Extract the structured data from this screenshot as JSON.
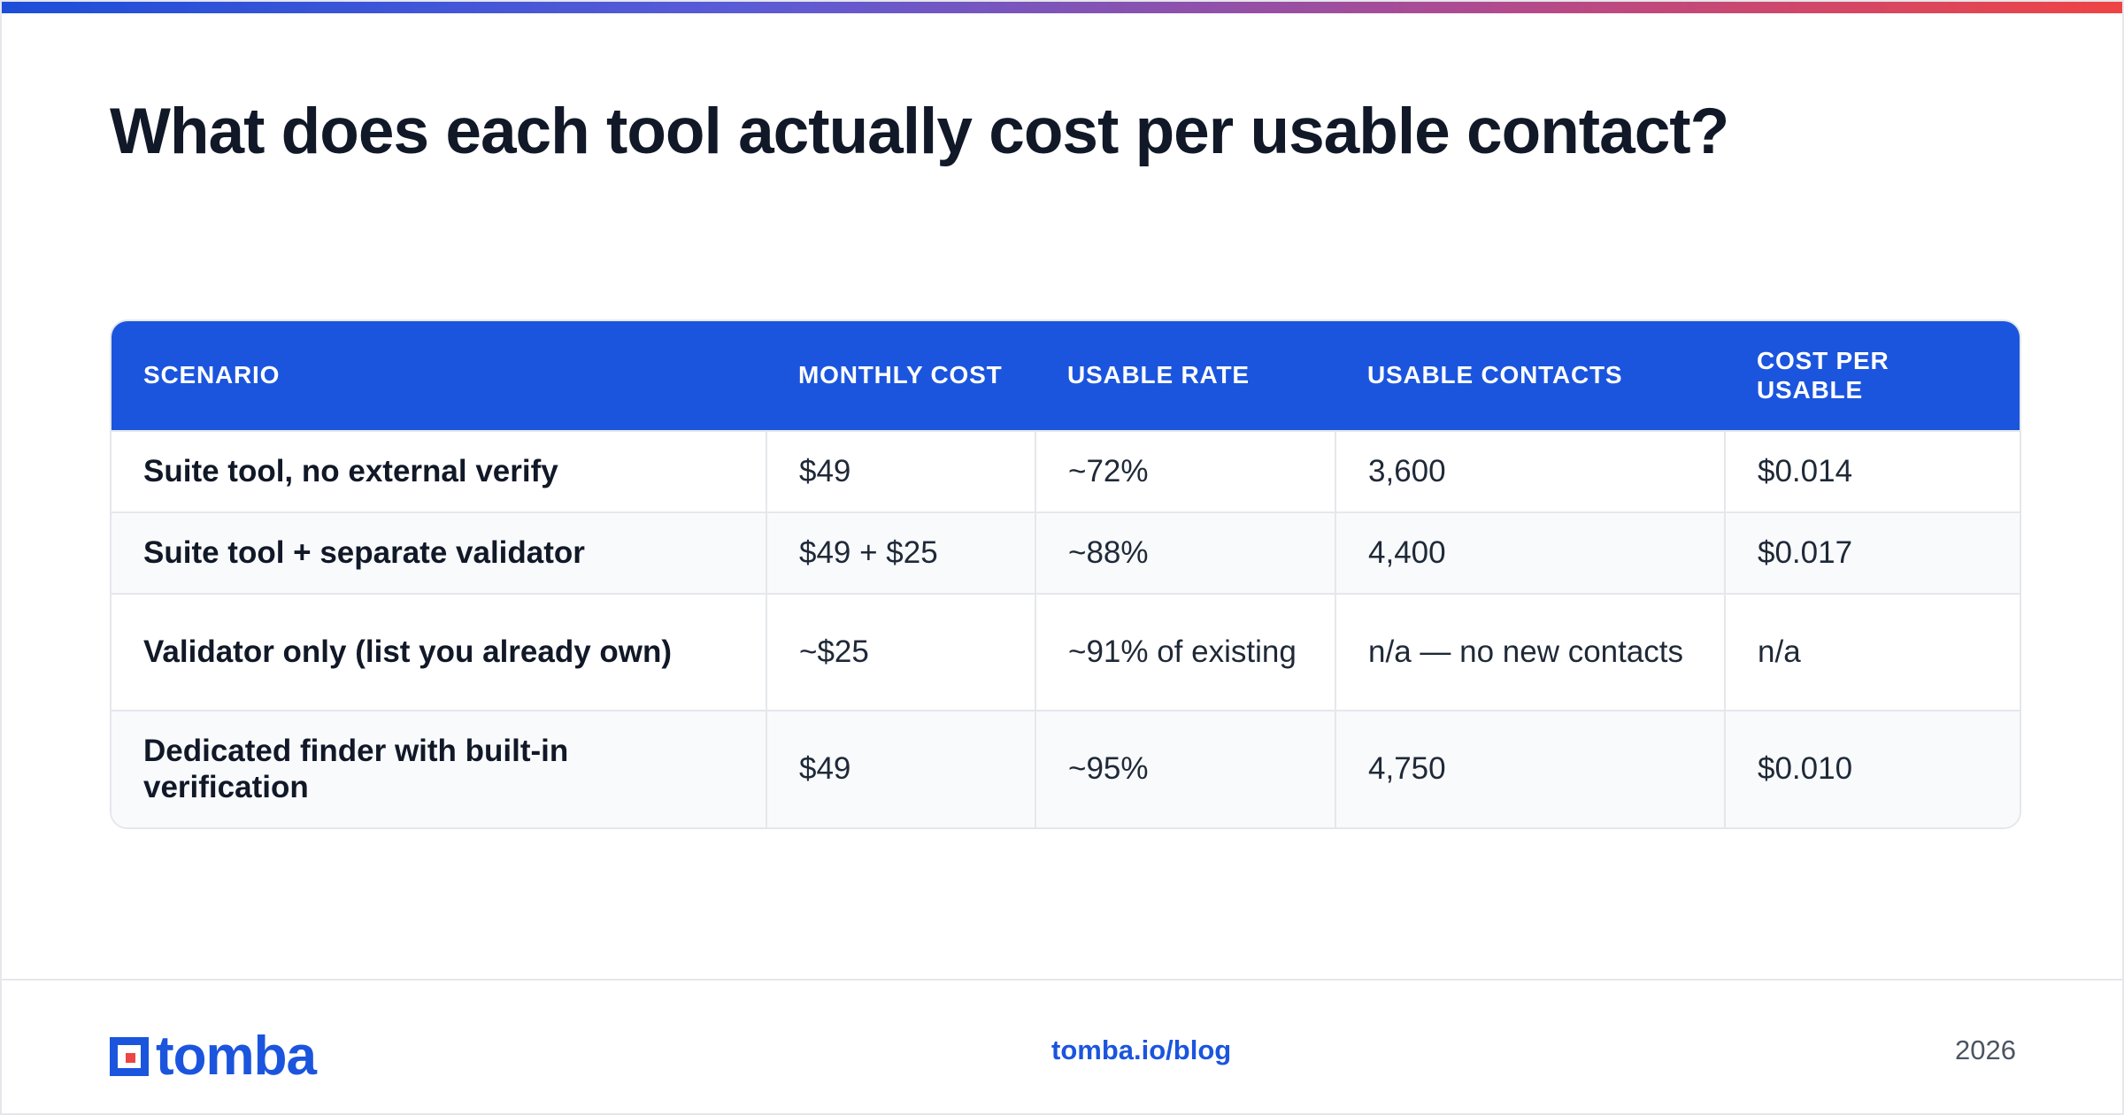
{
  "page": {
    "title": "What does each tool actually cost per usable contact?"
  },
  "table": {
    "headers": [
      "SCENARIO",
      "MONTHLY COST",
      "USABLE RATE",
      "USABLE CONTACTS",
      "COST PER USABLE"
    ],
    "rows": [
      [
        "Suite tool, no external verify",
        "$49",
        "~72%",
        "3,600",
        "$0.014"
      ],
      [
        "Suite tool + separate validator",
        "$49 + $25",
        "~88%",
        "4,400",
        "$0.017"
      ],
      [
        "Validator only (list you already own)",
        "~$25",
        "~91% of existing",
        "n/a — no new contacts",
        "n/a"
      ],
      [
        "Dedicated finder with built-in verification",
        "$49",
        "~95%",
        "4,750",
        "$0.010"
      ]
    ]
  },
  "footer": {
    "logo_text": "tomba",
    "link": "tomba.io/blog",
    "year": "2026"
  },
  "colors": {
    "accent": "#1b55de",
    "logo_red": "#ef4444",
    "header_text": "#ffffff"
  },
  "icons": {
    "logo": "tomba-square-logo-icon"
  }
}
